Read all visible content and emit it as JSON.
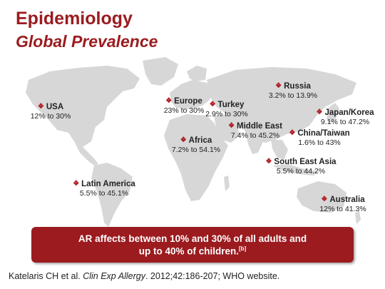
{
  "title": "Epidemiology",
  "subtitle": "Global Prevalence",
  "marker_icon": "diamond-cluster-icon",
  "colors": {
    "accent": "#9b1b1f",
    "land": "#d7d7d7"
  },
  "regions": [
    {
      "id": "usa",
      "name": "USA",
      "range": "12% to 30%"
    },
    {
      "id": "latin-america",
      "name": "Latin America",
      "range": "5.5% to 45.1%"
    },
    {
      "id": "europe",
      "name": "Europe",
      "range": "23% to 30%"
    },
    {
      "id": "turkey",
      "name": "Turkey",
      "range": "2.9% to 30%"
    },
    {
      "id": "russia",
      "name": "Russia",
      "range": "3.2% to 13.9%"
    },
    {
      "id": "middle-east",
      "name": "Middle East",
      "range": "7.4% to 45.2%"
    },
    {
      "id": "africa",
      "name": "Africa",
      "range": "7.2% to 54.1%"
    },
    {
      "id": "japan-korea",
      "name": "Japan/Korea",
      "range": "9.1% to 47.2%"
    },
    {
      "id": "china-taiwan",
      "name": "China/Taiwan",
      "range": "1.6% to 43%"
    },
    {
      "id": "south-east-asia",
      "name": "South East Asia",
      "range": "5.5% to 44.2%"
    },
    {
      "id": "australia",
      "name": "Australia",
      "range": "12% to 41.3%"
    }
  ],
  "banner": {
    "line1": "AR affects between 10% and 30% of all adults and",
    "line2": "up to 40% of children.",
    "ref": "[b]"
  },
  "citation": {
    "authors": "Katelaris CH et al.",
    "journal": "Clin Exp Allergy",
    "rest": ". 2012;42:186-207; WHO website."
  }
}
